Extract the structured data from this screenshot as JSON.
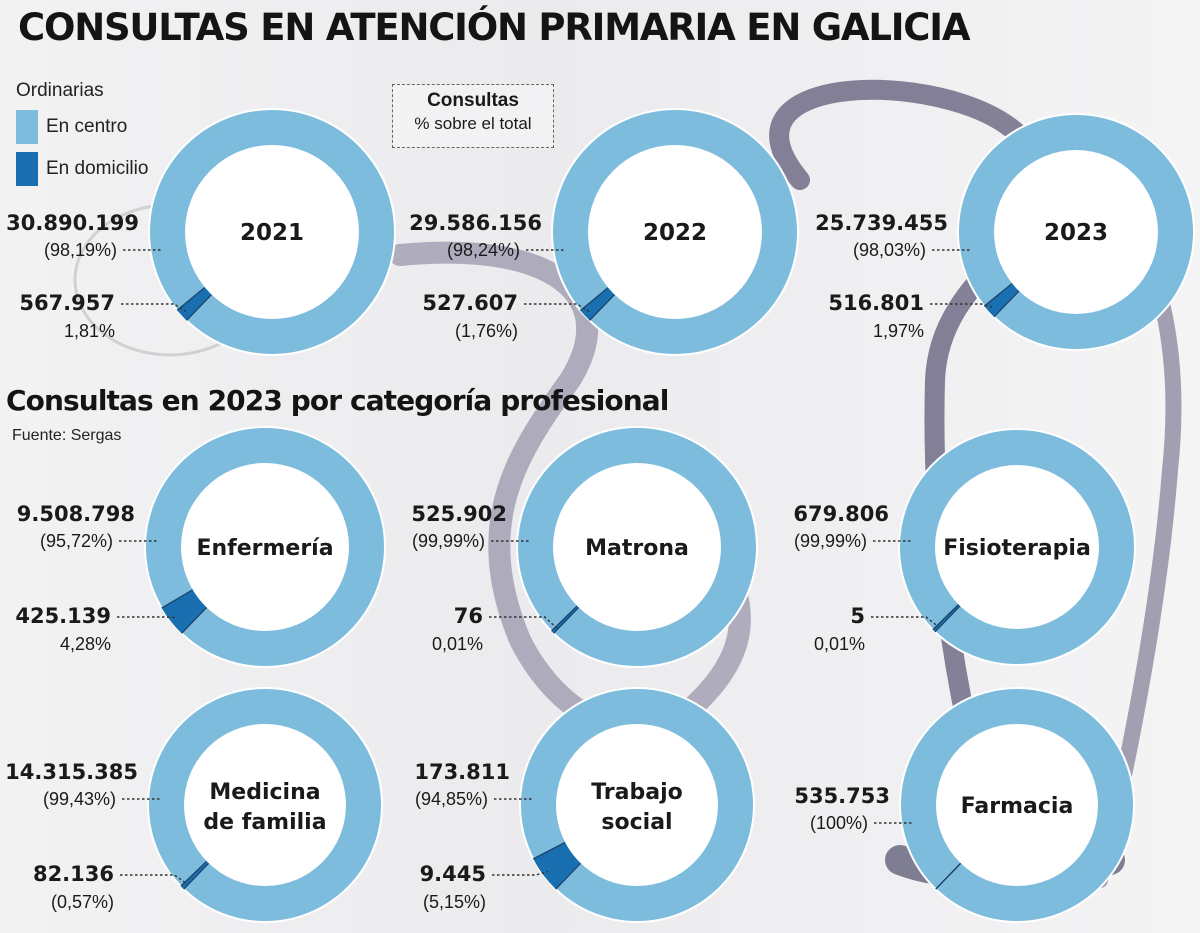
{
  "title": "CONSULTAS EN ATENCIÓN PRIMARIA EN GALICIA",
  "subtitle": "Consultas en 2023 por categoría profesional",
  "source": "Fuente: Sergas",
  "legend": {
    "heading": "Ordinarias",
    "items": [
      {
        "label": "En centro",
        "color": "#7dbcdc"
      },
      {
        "label": "En domicilio",
        "color": "#1a6fb0"
      }
    ]
  },
  "note": {
    "title": "Consultas",
    "subtitle": "% sobre el total"
  },
  "chart_data": [
    {
      "type": "pie",
      "group": "Ordinarias por año",
      "charts": [
        {
          "label": "2021",
          "slices": [
            {
              "name": "En centro",
              "value": 30890199,
              "value_text": "30.890.199",
              "pct_text": "(98,19%)"
            },
            {
              "name": "En domicilio",
              "value": 567957,
              "value_text": "567.957",
              "pct_text": "1,81%"
            }
          ]
        },
        {
          "label": "2022",
          "slices": [
            {
              "name": "En centro",
              "value": 29586156,
              "value_text": "29.586.156",
              "pct_text": "(98,24%)"
            },
            {
              "name": "En domicilio",
              "value": 527607,
              "value_text": "527.607",
              "pct_text": "(1,76%)"
            }
          ]
        },
        {
          "label": "2023",
          "slices": [
            {
              "name": "En centro",
              "value": 25739455,
              "value_text": "25.739.455",
              "pct_text": "(98,03%)"
            },
            {
              "name": "En domicilio",
              "value": 516801,
              "value_text": "516.801",
              "pct_text": "1,97%"
            }
          ]
        }
      ]
    },
    {
      "type": "pie",
      "group": "Consultas en 2023 por categoría profesional",
      "charts": [
        {
          "label": "Enfermería",
          "slices": [
            {
              "name": "En centro",
              "value": 9508798,
              "value_text": "9.508.798",
              "pct_text": "(95,72%)"
            },
            {
              "name": "En domicilio",
              "value": 425139,
              "value_text": "425.139",
              "pct_text": "4,28%"
            }
          ]
        },
        {
          "label": "Matrona",
          "slices": [
            {
              "name": "En centro",
              "value": 525902,
              "value_text": "525.902",
              "pct_text": "(99,99%)"
            },
            {
              "name": "En domicilio",
              "value": 76,
              "value_text": "76",
              "pct_text": "0,01%"
            }
          ]
        },
        {
          "label": "Fisioterapia",
          "slices": [
            {
              "name": "En centro",
              "value": 679806,
              "value_text": "679.806",
              "pct_text": "(99,99%)"
            },
            {
              "name": "En domicilio",
              "value": 5,
              "value_text": "5",
              "pct_text": "0,01%"
            }
          ]
        },
        {
          "label": "Medicina de familia",
          "slices": [
            {
              "name": "En centro",
              "value": 14315385,
              "value_text": "14.315.385",
              "pct_text": "(99,43%)"
            },
            {
              "name": "En domicilio",
              "value": 82136,
              "value_text": "82.136",
              "pct_text": "(0,57%)"
            }
          ]
        },
        {
          "label": "Trabajo social",
          "slices": [
            {
              "name": "En centro",
              "value": 173811,
              "value_text": "173.811",
              "pct_text": "(94,85%)"
            },
            {
              "name": "En domicilio",
              "value": 9445,
              "value_text": "9.445",
              "pct_text": "(5,15%)"
            }
          ]
        },
        {
          "label": "Farmacia",
          "slices": [
            {
              "name": "En centro",
              "value": 535753,
              "value_text": "535.753",
              "pct_text": "(100%)"
            }
          ]
        }
      ]
    }
  ]
}
